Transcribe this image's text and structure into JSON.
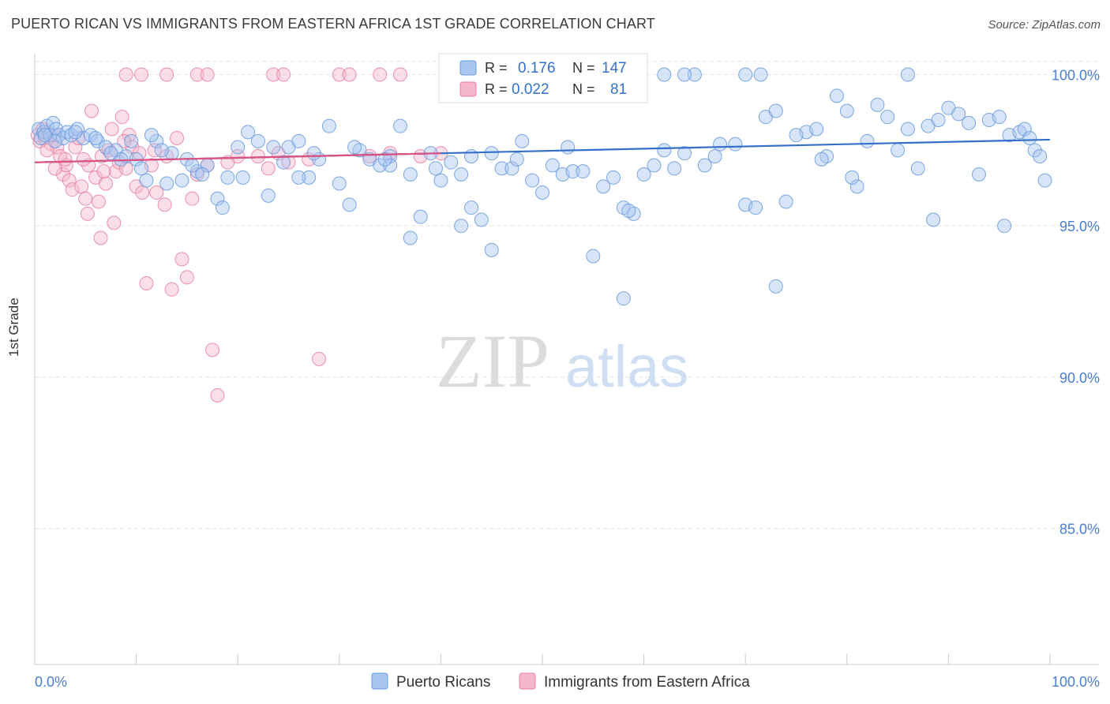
{
  "header": {
    "title": "PUERTO RICAN VS IMMIGRANTS FROM EASTERN AFRICA 1ST GRADE CORRELATION CHART",
    "source": "Source: ZipAtlas.com"
  },
  "watermark": {
    "zip": "ZIP",
    "atlas": "atlas"
  },
  "colors": {
    "blue": "#6699dd",
    "blue_fill": "#a8c6f0",
    "blue_line": "#3570c8",
    "pink": "#e87fa0",
    "pink_fill": "#f5b8cb",
    "pink_line": "#e05080",
    "tick_label": "#4a7ecf"
  },
  "legend": {
    "r_label": "R =",
    "n_label": "N =",
    "rows": [
      {
        "r": "0.176",
        "n": "147"
      },
      {
        "r": "0.022",
        "n": "81"
      }
    ]
  },
  "chart_data": {
    "type": "scatter",
    "title": "PUERTO RICAN VS IMMIGRANTS FROM EASTERN AFRICA 1ST GRADE CORRELATION CHART",
    "xlabel": "",
    "ylabel": "1st Grade",
    "xlim": [
      0,
      100
    ],
    "ylim": [
      80.5,
      100.9
    ],
    "x_tick_labels": [
      "0.0%",
      "100.0%"
    ],
    "y_ticks": [
      100,
      95,
      90,
      85
    ],
    "y_tick_labels": [
      "100.0%",
      "95.0%",
      "90.0%",
      "85.0%"
    ],
    "grid": true,
    "legend_position": "top-center",
    "series": [
      {
        "name": "Puerto Ricans",
        "r": 0.176,
        "n": 147,
        "trend": [
          [
            0,
            97.1
          ],
          [
            100,
            97.85
          ]
        ],
        "points": [
          [
            0.4,
            98.2
          ],
          [
            0.6,
            97.9
          ],
          [
            0.9,
            98.1
          ],
          [
            1.2,
            98.3
          ],
          [
            1.5,
            98.0
          ],
          [
            1.8,
            98.4
          ],
          [
            2.1,
            98.2
          ],
          [
            2.4,
            98.0
          ],
          [
            2.8,
            97.9
          ],
          [
            3.2,
            98.1
          ],
          [
            3.6,
            98.0
          ],
          [
            4.2,
            98.2
          ],
          [
            4.8,
            97.9
          ],
          [
            5.5,
            98.0
          ],
          [
            6.2,
            97.8
          ],
          [
            7.0,
            97.6
          ],
          [
            8.0,
            97.5
          ],
          [
            9.0,
            97.3
          ],
          [
            10.0,
            97.2
          ],
          [
            11.0,
            96.5
          ],
          [
            12.0,
            97.8
          ],
          [
            13.5,
            97.4
          ],
          [
            14.5,
            96.5
          ],
          [
            15.0,
            97.2
          ],
          [
            16.0,
            96.8
          ],
          [
            17.0,
            97.0
          ],
          [
            18.0,
            95.9
          ],
          [
            18.5,
            95.6
          ],
          [
            19.0,
            96.6
          ],
          [
            20.5,
            96.6
          ],
          [
            21.0,
            98.1
          ],
          [
            22.0,
            97.8
          ],
          [
            23.0,
            96.0
          ],
          [
            24.5,
            97.1
          ],
          [
            25.0,
            97.6
          ],
          [
            26.0,
            97.8
          ],
          [
            27.0,
            96.6
          ],
          [
            28.0,
            97.2
          ],
          [
            29.0,
            98.3
          ],
          [
            30.0,
            96.4
          ],
          [
            31.0,
            95.7
          ],
          [
            32.0,
            97.5
          ],
          [
            33.0,
            97.2
          ],
          [
            34.0,
            97.0
          ],
          [
            35.0,
            97.3
          ],
          [
            36.0,
            98.3
          ],
          [
            37.0,
            96.7
          ],
          [
            38.0,
            95.3
          ],
          [
            39.0,
            97.4
          ],
          [
            40.0,
            96.5
          ],
          [
            41.0,
            97.1
          ],
          [
            42.0,
            96.7
          ],
          [
            43.0,
            95.6
          ],
          [
            44.0,
            95.2
          ],
          [
            45.0,
            97.4
          ],
          [
            46.0,
            96.9
          ],
          [
            47.0,
            96.9
          ],
          [
            48.0,
            97.8
          ],
          [
            49.0,
            96.5
          ],
          [
            50.0,
            96.1
          ],
          [
            51.0,
            97.0
          ],
          [
            52.0,
            96.7
          ],
          [
            53.0,
            96.8
          ],
          [
            54.0,
            96.8
          ],
          [
            55.0,
            94.0
          ],
          [
            56.0,
            96.3
          ],
          [
            57.0,
            96.6
          ],
          [
            58.0,
            95.6
          ],
          [
            59.0,
            95.4
          ],
          [
            60.0,
            96.7
          ],
          [
            61.0,
            97.0
          ],
          [
            62.0,
            97.5
          ],
          [
            63.0,
            96.9
          ],
          [
            64.0,
            97.4
          ],
          [
            65.0,
            100.0
          ],
          [
            66.0,
            97.0
          ],
          [
            69.0,
            97.7
          ],
          [
            70.0,
            95.7
          ],
          [
            71.0,
            95.6
          ],
          [
            72.0,
            98.6
          ],
          [
            73.0,
            98.8
          ],
          [
            74.0,
            95.8
          ],
          [
            76.0,
            98.1
          ],
          [
            77.0,
            98.2
          ],
          [
            78.0,
            97.3
          ],
          [
            79.0,
            99.3
          ],
          [
            80.0,
            98.8
          ],
          [
            81.0,
            96.3
          ],
          [
            82.0,
            97.8
          ],
          [
            83.0,
            99.0
          ],
          [
            84.0,
            98.6
          ],
          [
            85.0,
            97.5
          ],
          [
            86.0,
            98.2
          ],
          [
            87.0,
            96.9
          ],
          [
            88.0,
            98.3
          ],
          [
            89.0,
            98.5
          ],
          [
            90.0,
            98.9
          ],
          [
            91.0,
            98.7
          ],
          [
            92.0,
            98.4
          ],
          [
            93.0,
            96.7
          ],
          [
            94.0,
            98.5
          ],
          [
            95.0,
            98.6
          ],
          [
            96.0,
            98.0
          ],
          [
            97.0,
            98.1
          ],
          [
            97.5,
            98.2
          ],
          [
            98.0,
            97.9
          ],
          [
            98.5,
            97.5
          ],
          [
            99.0,
            97.3
          ],
          [
            99.5,
            96.5
          ],
          [
            49.5,
            99.3
          ],
          [
            46.0,
            100.0
          ],
          [
            62.0,
            100.0
          ],
          [
            64.0,
            100.0
          ],
          [
            70.0,
            100.0
          ],
          [
            71.5,
            100.0
          ],
          [
            86.0,
            100.0
          ],
          [
            45.0,
            94.2
          ],
          [
            37.0,
            94.6
          ],
          [
            42.0,
            95.0
          ],
          [
            58.0,
            92.6
          ],
          [
            58.5,
            95.5
          ],
          [
            73.0,
            93.0
          ],
          [
            43.0,
            97.3
          ],
          [
            35.0,
            97.0
          ],
          [
            26.0,
            96.6
          ],
          [
            12.5,
            97.5
          ],
          [
            20.0,
            97.6
          ],
          [
            8.5,
            97.2
          ],
          [
            10.5,
            96.9
          ],
          [
            13.0,
            96.4
          ],
          [
            2.0,
            97.8
          ],
          [
            1.0,
            98.0
          ],
          [
            4.0,
            98.1
          ],
          [
            6.0,
            97.9
          ],
          [
            7.5,
            97.4
          ],
          [
            9.5,
            97.8
          ],
          [
            11.5,
            98.0
          ],
          [
            15.5,
            97.0
          ],
          [
            16.5,
            96.7
          ],
          [
            23.5,
            97.6
          ],
          [
            27.5,
            97.4
          ],
          [
            31.5,
            97.6
          ],
          [
            34.5,
            97.2
          ],
          [
            39.5,
            96.9
          ],
          [
            47.5,
            97.2
          ],
          [
            52.5,
            97.6
          ],
          [
            67.0,
            97.3
          ],
          [
            75.0,
            98.0
          ],
          [
            95.5,
            95.0
          ],
          [
            88.5,
            95.2
          ],
          [
            80.5,
            96.6
          ],
          [
            67.5,
            97.7
          ],
          [
            77.5,
            97.2
          ]
        ]
      },
      {
        "name": "Immigrants from Eastern Africa",
        "r": 0.022,
        "n": 81,
        "trend": [
          [
            0,
            97.1
          ],
          [
            40,
            97.4
          ]
        ],
        "points": [
          [
            0.3,
            98.0
          ],
          [
            0.5,
            97.8
          ],
          [
            0.8,
            98.2
          ],
          [
            1.0,
            97.9
          ],
          [
            1.3,
            98.1
          ],
          [
            1.6,
            97.7
          ],
          [
            1.9,
            98.0
          ],
          [
            2.2,
            97.6
          ],
          [
            2.5,
            97.3
          ],
          [
            2.8,
            96.7
          ],
          [
            3.1,
            97.0
          ],
          [
            3.4,
            96.5
          ],
          [
            3.7,
            96.2
          ],
          [
            4.0,
            97.6
          ],
          [
            4.3,
            97.9
          ],
          [
            4.6,
            96.3
          ],
          [
            5.0,
            95.9
          ],
          [
            5.3,
            97.0
          ],
          [
            5.6,
            98.8
          ],
          [
            6.0,
            96.6
          ],
          [
            6.3,
            95.8
          ],
          [
            6.6,
            97.3
          ],
          [
            7.0,
            96.4
          ],
          [
            7.3,
            97.5
          ],
          [
            7.6,
            98.2
          ],
          [
            8.0,
            96.8
          ],
          [
            8.3,
            97.1
          ],
          [
            8.6,
            98.6
          ],
          [
            9.0,
            96.9
          ],
          [
            9.3,
            98.0
          ],
          [
            9.6,
            97.6
          ],
          [
            10.0,
            96.3
          ],
          [
            10.3,
            97.4
          ],
          [
            10.6,
            96.1
          ],
          [
            11.0,
            93.1
          ],
          [
            11.5,
            97.0
          ],
          [
            12.0,
            96.1
          ],
          [
            13.0,
            97.3
          ],
          [
            13.5,
            92.9
          ],
          [
            14.0,
            97.9
          ],
          [
            14.5,
            93.9
          ],
          [
            15.0,
            93.3
          ],
          [
            15.5,
            95.9
          ],
          [
            16.0,
            96.7
          ],
          [
            17.0,
            97.0
          ],
          [
            17.5,
            90.9
          ],
          [
            18.0,
            89.4
          ],
          [
            19.0,
            97.1
          ],
          [
            20.0,
            97.3
          ],
          [
            22.0,
            97.3
          ],
          [
            23.0,
            96.9
          ],
          [
            24.0,
            97.4
          ],
          [
            25.0,
            97.1
          ],
          [
            27.0,
            97.2
          ],
          [
            28.0,
            90.6
          ],
          [
            30.0,
            100.0
          ],
          [
            31.0,
            100.0
          ],
          [
            33.0,
            97.3
          ],
          [
            35.0,
            97.4
          ],
          [
            36.0,
            100.0
          ],
          [
            38.0,
            97.3
          ],
          [
            40.0,
            97.4
          ],
          [
            9.0,
            100.0
          ],
          [
            10.5,
            100.0
          ],
          [
            13.0,
            100.0
          ],
          [
            16.0,
            100.0
          ],
          [
            17.0,
            100.0
          ],
          [
            23.5,
            100.0
          ],
          [
            24.5,
            100.0
          ],
          [
            34.0,
            100.0
          ],
          [
            6.5,
            94.6
          ],
          [
            7.8,
            95.1
          ],
          [
            5.2,
            95.4
          ],
          [
            12.8,
            95.7
          ],
          [
            3.0,
            97.2
          ],
          [
            2.0,
            96.9
          ],
          [
            1.2,
            97.5
          ],
          [
            4.8,
            97.2
          ],
          [
            6.8,
            96.8
          ],
          [
            8.8,
            97.8
          ],
          [
            11.8,
            97.5
          ]
        ]
      }
    ],
    "bottom_legend": [
      "Puerto Ricans",
      "Immigrants from Eastern Africa"
    ]
  }
}
